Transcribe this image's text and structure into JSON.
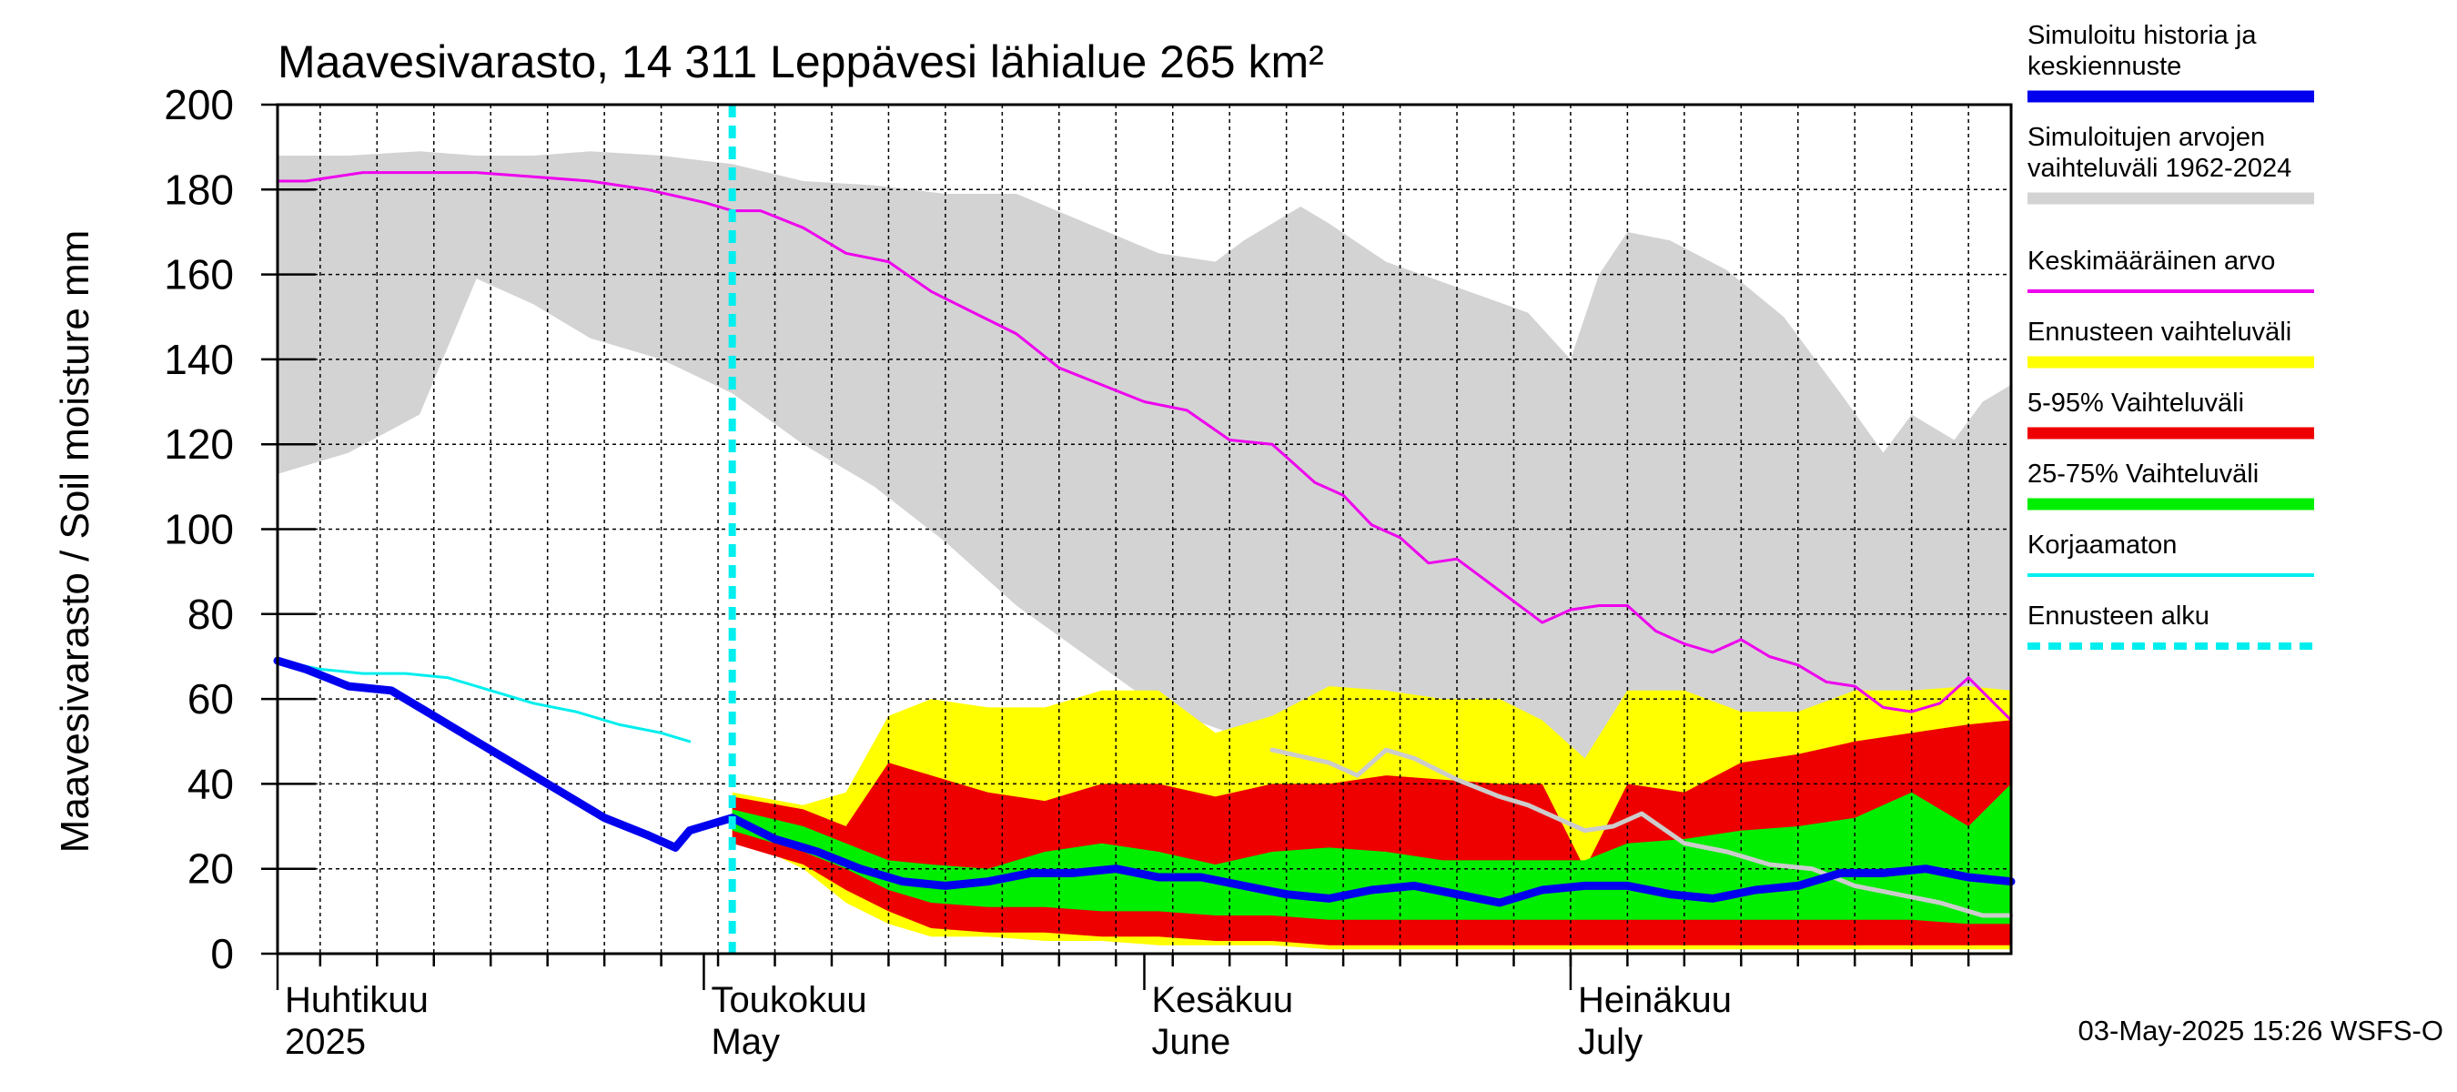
{
  "chart_data": {
    "type": "area",
    "title": "Maavesivarasto, 14 311 Leppävesi lähialue 265 km²",
    "ylabel": "Maavesivarasto / Soil moisture   mm",
    "ylim": [
      0,
      200
    ],
    "yticks": [
      "0",
      "20",
      "40",
      "60",
      "80",
      "100",
      "120",
      "140",
      "160",
      "180",
      "200"
    ],
    "xlim": [
      "2025-04-01",
      "2025-08-01"
    ],
    "x_months": [
      {
        "date": "2025-04-01",
        "fi": "Huhtikuu",
        "en": "2025"
      },
      {
        "date": "2025-05-01",
        "fi": "Toukokuu",
        "en": "May"
      },
      {
        "date": "2025-06-01",
        "fi": "Kesäkuu",
        "en": "June"
      },
      {
        "date": "2025-07-01",
        "fi": "Heinäkuu",
        "en": "July"
      }
    ],
    "forecast_start": "2025-05-03",
    "grid": true,
    "legend_position": "right",
    "footer": "03-May-2025 15:26 WSFS-O",
    "legend": [
      {
        "label": "Simuloitu historia ja keskiennuste",
        "color": "#0000ee",
        "style": "thick"
      },
      {
        "label": "Simuloitujen arvojen vaihteluväli 1962-2024",
        "color": "#d3d3d3",
        "style": "thick"
      },
      {
        "label": "Keskimääräinen arvo",
        "color": "#ee00ee",
        "style": "thin"
      },
      {
        "label": "Ennusteen vaihteluväli",
        "color": "#ffff00",
        "style": "thick"
      },
      {
        "label": "5-95% Vaihteluväli",
        "color": "#ee0000",
        "style": "thick"
      },
      {
        "label": "25-75% Vaihteluväli",
        "color": "#00ee00",
        "style": "thick"
      },
      {
        "label": "Korjaamaton",
        "color": "#00eeee",
        "style": "thin"
      },
      {
        "label": "Ennusteen alku",
        "color": "#00eeee",
        "style": "dashed"
      }
    ],
    "series": [
      {
        "name": "Simuloitujen arvojen vaihteluväli 1962-2024",
        "kind": "band",
        "color": "#d3d3d3",
        "x": [
          "2025-04-01",
          "2025-04-06",
          "2025-04-11",
          "2025-04-15",
          "2025-04-19",
          "2025-04-23",
          "2025-04-28",
          "2025-05-03",
          "2025-05-08",
          "2025-05-13",
          "2025-05-18",
          "2025-05-23",
          "2025-05-28",
          "2025-06-02",
          "2025-06-06",
          "2025-06-08",
          "2025-06-12",
          "2025-06-14",
          "2025-06-18",
          "2025-06-23",
          "2025-06-28",
          "2025-07-01",
          "2025-07-03",
          "2025-07-05",
          "2025-07-08",
          "2025-07-12",
          "2025-07-16",
          "2025-07-20",
          "2025-07-23",
          "2025-07-25",
          "2025-07-28",
          "2025-07-30",
          "2025-08-01"
        ],
        "high": [
          188,
          188,
          189,
          188,
          188,
          189,
          188,
          186,
          182,
          181,
          179,
          179,
          172,
          165,
          163,
          168,
          176,
          172,
          163,
          157,
          151,
          140,
          160,
          170,
          168,
          161,
          150,
          132,
          118,
          127,
          121,
          130,
          134
        ],
        "x_low": [
          "2025-04-01",
          "2025-04-06",
          "2025-04-11",
          "2025-04-15",
          "2025-04-19",
          "2025-04-23",
          "2025-04-28",
          "2025-05-03",
          "2025-05-08",
          "2025-05-13",
          "2025-05-18",
          "2025-05-23",
          "2025-05-28",
          "2025-06-02",
          "2025-06-07",
          "2025-06-12",
          "2025-06-17",
          "2025-06-22",
          "2025-06-27",
          "2025-07-01",
          "2025-07-06",
          "2025-07-11",
          "2025-07-16",
          "2025-07-21",
          "2025-07-26",
          "2025-08-01"
        ],
        "low": [
          113,
          118,
          127,
          159,
          153,
          145,
          140,
          132,
          120,
          110,
          97,
          82,
          70,
          58,
          52,
          50,
          49,
          47,
          45,
          44,
          40,
          38,
          35,
          33,
          30,
          27
        ]
      },
      {
        "name": "Ennusteen vaihteluväli",
        "kind": "band",
        "color": "#ffff00",
        "x": [
          "2025-05-03",
          "2025-05-08",
          "2025-05-11",
          "2025-05-14",
          "2025-05-17",
          "2025-05-21",
          "2025-05-25",
          "2025-05-29",
          "2025-06-02",
          "2025-06-06",
          "2025-06-10",
          "2025-06-14",
          "2025-06-18",
          "2025-06-22",
          "2025-06-26",
          "2025-06-29",
          "2025-07-02",
          "2025-07-05",
          "2025-07-09",
          "2025-07-13",
          "2025-07-17",
          "2025-07-21",
          "2025-07-25",
          "2025-07-29",
          "2025-08-01"
        ],
        "high": [
          38,
          35,
          38,
          56,
          60,
          58,
          58,
          62,
          62,
          52,
          56,
          63,
          62,
          60,
          60,
          55,
          46,
          62,
          62,
          57,
          57,
          62,
          62,
          63,
          62
        ],
        "low": [
          28,
          20,
          12,
          7,
          4,
          4,
          3,
          3,
          2,
          2,
          2,
          1,
          1,
          1,
          1,
          1,
          1,
          1,
          1,
          1,
          1,
          1,
          1,
          1,
          1
        ]
      },
      {
        "name": "5-95% Vaihteluväli",
        "kind": "band",
        "color": "#ee0000",
        "x": [
          "2025-05-03",
          "2025-05-08",
          "2025-05-11",
          "2025-05-14",
          "2025-05-17",
          "2025-05-21",
          "2025-05-25",
          "2025-05-29",
          "2025-06-02",
          "2025-06-06",
          "2025-06-10",
          "2025-06-14",
          "2025-06-18",
          "2025-06-22",
          "2025-06-26",
          "2025-06-29",
          "2025-07-02",
          "2025-07-05",
          "2025-07-09",
          "2025-07-13",
          "2025-07-17",
          "2025-07-21",
          "2025-07-25",
          "2025-07-29",
          "2025-08-01"
        ],
        "high": [
          37,
          34,
          30,
          45,
          42,
          38,
          36,
          40,
          40,
          37,
          40,
          40,
          42,
          41,
          40,
          40,
          20,
          40,
          38,
          45,
          47,
          50,
          52,
          54,
          55
        ],
        "low": [
          26,
          21,
          15,
          10,
          6,
          5,
          5,
          4,
          4,
          3,
          3,
          2,
          2,
          2,
          2,
          2,
          2,
          2,
          2,
          2,
          2,
          2,
          2,
          2,
          2
        ]
      },
      {
        "name": "25-75% Vaihteluväli",
        "kind": "band",
        "color": "#00ee00",
        "x": [
          "2025-05-03",
          "2025-05-08",
          "2025-05-11",
          "2025-05-14",
          "2025-05-17",
          "2025-05-21",
          "2025-05-25",
          "2025-05-29",
          "2025-06-02",
          "2025-06-06",
          "2025-06-10",
          "2025-06-14",
          "2025-06-18",
          "2025-06-22",
          "2025-06-26",
          "2025-06-29",
          "2025-07-02",
          "2025-07-05",
          "2025-07-09",
          "2025-07-13",
          "2025-07-17",
          "2025-07-21",
          "2025-07-25",
          "2025-07-29",
          "2025-08-01"
        ],
        "high": [
          34,
          30,
          26,
          22,
          21,
          20,
          24,
          26,
          24,
          21,
          24,
          25,
          24,
          22,
          22,
          22,
          22,
          26,
          27,
          29,
          30,
          32,
          38,
          30,
          40
        ],
        "low": [
          29,
          24,
          20,
          15,
          12,
          11,
          11,
          10,
          10,
          9,
          9,
          8,
          8,
          8,
          8,
          8,
          8,
          8,
          8,
          8,
          8,
          8,
          8,
          7,
          7
        ]
      },
      {
        "name": "Keskimääräinen arvo",
        "kind": "line",
        "color": "#ee00ee",
        "width": 3,
        "x": [
          "2025-04-01",
          "2025-04-03",
          "2025-04-07",
          "2025-04-11",
          "2025-04-15",
          "2025-04-19",
          "2025-04-23",
          "2025-04-27",
          "2025-05-01",
          "2025-05-03",
          "2025-05-05",
          "2025-05-08",
          "2025-05-11",
          "2025-05-14",
          "2025-05-17",
          "2025-05-20",
          "2025-05-23",
          "2025-05-26",
          "2025-05-29",
          "2025-06-01",
          "2025-06-04",
          "2025-06-07",
          "2025-06-10",
          "2025-06-13",
          "2025-06-15",
          "2025-06-17",
          "2025-06-19",
          "2025-06-21",
          "2025-06-23",
          "2025-06-25",
          "2025-06-27",
          "2025-06-29",
          "2025-07-01",
          "2025-07-03",
          "2025-07-05",
          "2025-07-07",
          "2025-07-09",
          "2025-07-11",
          "2025-07-13",
          "2025-07-15",
          "2025-07-17",
          "2025-07-19",
          "2025-07-21",
          "2025-07-23",
          "2025-07-25",
          "2025-07-27",
          "2025-07-29",
          "2025-08-01"
        ],
        "values": [
          182,
          182,
          184,
          184,
          184,
          183,
          182,
          180,
          177,
          175,
          175,
          171,
          165,
          163,
          156,
          151,
          146,
          138,
          134,
          130,
          128,
          121,
          120,
          111,
          108,
          101,
          98,
          92,
          93,
          88,
          83,
          78,
          81,
          82,
          82,
          76,
          73,
          71,
          74,
          70,
          68,
          64,
          63,
          58,
          57,
          59,
          65,
          55
        ]
      },
      {
        "name": "Korjaamaton",
        "kind": "line",
        "color": "#00eeee",
        "width": 3,
        "x": [
          "2025-04-01",
          "2025-04-04",
          "2025-04-07",
          "2025-04-10",
          "2025-04-13",
          "2025-04-16",
          "2025-04-19",
          "2025-04-22",
          "2025-04-25",
          "2025-04-28",
          "2025-04-30"
        ],
        "values": [
          69,
          67,
          66,
          66,
          65,
          62,
          59,
          57,
          54,
          52,
          50
        ]
      },
      {
        "name": "Korjaamaton",
        "kind": "line",
        "color": "#cccccc",
        "width": 5,
        "x": [
          "2025-06-10",
          "2025-06-14",
          "2025-06-16",
          "2025-06-18",
          "2025-06-20",
          "2025-06-23",
          "2025-06-26",
          "2025-06-28",
          "2025-06-30",
          "2025-07-02",
          "2025-07-04",
          "2025-07-06",
          "2025-07-09",
          "2025-07-12",
          "2025-07-15",
          "2025-07-18",
          "2025-07-21",
          "2025-07-24",
          "2025-07-27",
          "2025-07-30",
          "2025-08-01"
        ],
        "values": [
          48,
          45,
          42,
          48,
          46,
          41,
          37,
          35,
          32,
          29,
          30,
          33,
          26,
          24,
          21,
          20,
          16,
          14,
          12,
          9,
          9
        ]
      },
      {
        "name": "Simuloitu historia ja keskiennuste",
        "kind": "line",
        "color": "#0000ee",
        "width": 9,
        "x": [
          "2025-04-01",
          "2025-04-03",
          "2025-04-06",
          "2025-04-09",
          "2025-04-12",
          "2025-04-15",
          "2025-04-18",
          "2025-04-21",
          "2025-04-24",
          "2025-04-27",
          "2025-04-29",
          "2025-04-30",
          "2025-05-01",
          "2025-05-03",
          "2025-05-06",
          "2025-05-09",
          "2025-05-12",
          "2025-05-15",
          "2025-05-18",
          "2025-05-21",
          "2025-05-24",
          "2025-05-27",
          "2025-05-30",
          "2025-06-02",
          "2025-06-05",
          "2025-06-08",
          "2025-06-11",
          "2025-06-14",
          "2025-06-17",
          "2025-06-20",
          "2025-06-23",
          "2025-06-26",
          "2025-06-29",
          "2025-07-02",
          "2025-07-05",
          "2025-07-08",
          "2025-07-11",
          "2025-07-14",
          "2025-07-17",
          "2025-07-20",
          "2025-07-23",
          "2025-07-26",
          "2025-07-29",
          "2025-08-01"
        ],
        "values": [
          69,
          67,
          63,
          62,
          56,
          50,
          44,
          38,
          32,
          28,
          25,
          29,
          30,
          32,
          27,
          24,
          20,
          17,
          16,
          17,
          19,
          19,
          20,
          18,
          18,
          16,
          14,
          13,
          15,
          16,
          14,
          12,
          15,
          16,
          16,
          14,
          13,
          15,
          16,
          19,
          19,
          20,
          18,
          17
        ]
      }
    ]
  }
}
